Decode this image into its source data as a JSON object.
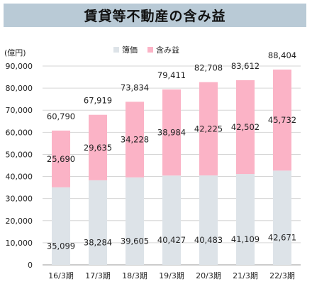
{
  "title": "賃貸等不動産の含み益",
  "chart_data": {
    "type": "bar",
    "stacked": true,
    "unit_label": "(億円)",
    "categories": [
      "16/3期",
      "17/3期",
      "18/3期",
      "19/3期",
      "20/3期",
      "21/3期",
      "22/3期"
    ],
    "series": [
      {
        "name": "簿価",
        "color": "#dde3e8",
        "values": [
          35099,
          38284,
          39605,
          40427,
          40483,
          41109,
          42671
        ]
      },
      {
        "name": "含み益",
        "color": "#fbb3c6",
        "values": [
          25690,
          29635,
          34228,
          38984,
          42225,
          42502,
          45732
        ]
      }
    ],
    "totals": [
      60790,
      67919,
      73834,
      79411,
      82708,
      83612,
      88404
    ],
    "ylim": [
      0,
      90000
    ],
    "yticks": [
      0,
      10000,
      20000,
      30000,
      40000,
      50000,
      60000,
      70000,
      80000,
      90000
    ],
    "grid": true,
    "legend_position": "top-center"
  }
}
